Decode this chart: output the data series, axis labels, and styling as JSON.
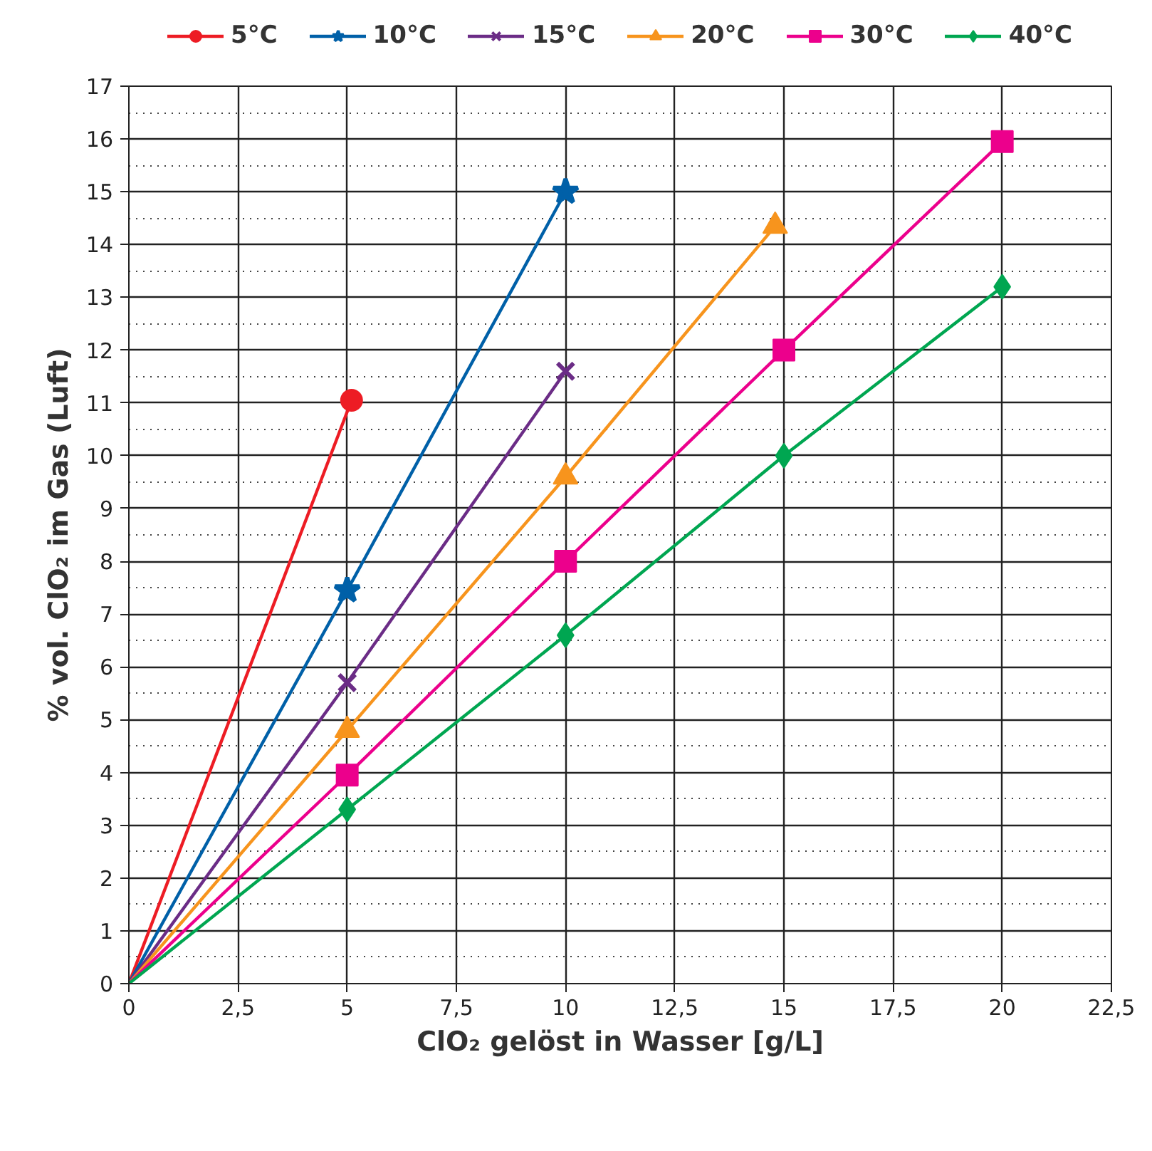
{
  "chart_data": {
    "type": "line",
    "xlabel": "ClO₂ gelöst in Wasser [g/L]",
    "ylabel": "% vol. ClO₂ im Gas (Luft)",
    "xlim": [
      0,
      22.5
    ],
    "ylim": [
      0,
      17
    ],
    "xticks": [
      0,
      {
        "value": 2.5,
        "label": "2,5"
      },
      5,
      {
        "value": 7.5,
        "label": "7,5"
      },
      10,
      {
        "value": 12.5,
        "label": "12,5"
      },
      15,
      {
        "value": 17.5,
        "label": "17,5"
      },
      20,
      {
        "value": 22.5,
        "label": "22,5"
      }
    ],
    "yticks": [
      0,
      1,
      2,
      3,
      4,
      5,
      6,
      7,
      8,
      9,
      10,
      11,
      12,
      13,
      14,
      15,
      16,
      17
    ],
    "grid": true,
    "legend": "top",
    "line_style": "solid",
    "series": [
      {
        "name": "5°C",
        "color": "#ed1c24",
        "marker": "circle",
        "x": [
          0,
          5.1
        ],
        "values": [
          0,
          11.05
        ]
      },
      {
        "name": "10°C",
        "color": "#0060a8",
        "marker": "star",
        "x": [
          0,
          5,
          10
        ],
        "values": [
          0,
          7.45,
          15.0
        ]
      },
      {
        "name": "15°C",
        "color": "#6b2c86",
        "marker": "cross",
        "x": [
          0,
          5,
          10
        ],
        "values": [
          0,
          5.7,
          11.6
        ]
      },
      {
        "name": "20°C",
        "color": "#f7941d",
        "marker": "triangle",
        "x": [
          0,
          5,
          10,
          14.8
        ],
        "values": [
          0,
          4.8,
          9.6,
          14.35
        ]
      },
      {
        "name": "30°C",
        "color": "#ec008c",
        "marker": "square",
        "x": [
          0,
          5,
          10,
          15,
          20
        ],
        "values": [
          0,
          3.95,
          8.0,
          12.0,
          15.95
        ]
      },
      {
        "name": "40°C",
        "color": "#00a651",
        "marker": "diamond",
        "x": [
          0,
          5,
          10,
          15,
          20
        ],
        "values": [
          0,
          3.3,
          6.6,
          10.0,
          13.2
        ]
      }
    ]
  }
}
